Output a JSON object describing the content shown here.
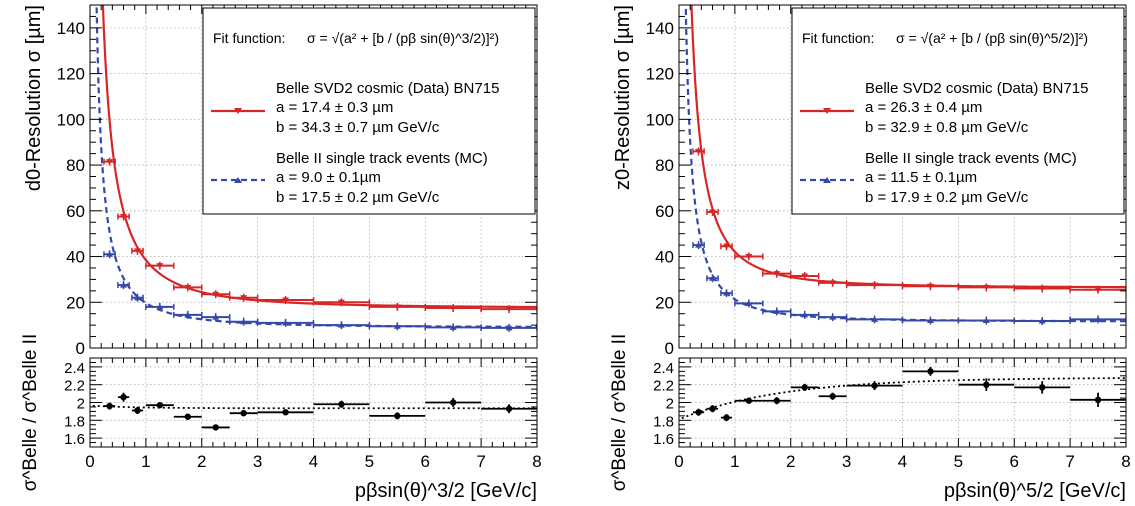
{
  "chart_data": [
    {
      "type": "scatter",
      "xlabel": "pβsin(θ)^3/2 [GeV/c]",
      "ylabel_top": "d0-Resolution σ [µm]",
      "ylabel_bottom": "σ^Belle / σ^Belle II",
      "xlim": [
        0,
        8
      ],
      "ylim_top": [
        0,
        150
      ],
      "ylim_bottom": [
        1.5,
        2.5
      ],
      "xticks": [
        "0",
        "1",
        "2",
        "3",
        "4",
        "5",
        "6",
        "7",
        "8"
      ],
      "yticks_top": [
        "0",
        "20",
        "40",
        "60",
        "80",
        "100",
        "120",
        "140"
      ],
      "yticks_bottom": [
        "1.6",
        "1.8",
        "2",
        "2.2",
        "2.4"
      ],
      "grid": true,
      "fit_function_label": "Fit function:",
      "fit_function_formula": "σ = √(a² + [b / (pβ sin(θ)^3/2)]²)",
      "legend": {
        "data_label": "Belle SVD2 cosmic (Data) BN715",
        "data_a": "a =  17.4 ± 0.3 µm",
        "data_b": "b =  34.3 ± 0.7 µm GeV/c",
        "mc_label": "Belle II single track events (MC)",
        "mc_a": "a =   9.0 ± 0.1µm",
        "mc_b": "b =  17.5 ± 0.2 µm GeV/c"
      },
      "fit_params": {
        "data": {
          "a": 17.4,
          "b": 34.3
        },
        "mc": {
          "a": 9.0,
          "b": 17.5
        }
      },
      "colors": {
        "data": "#d62728",
        "mc": "#3548a8",
        "ratio": "#000000"
      },
      "series": [
        {
          "name": "Belle SVD2 cosmic (Data) BN715",
          "points": [
            {
              "x": 0.35,
              "y": 81.5,
              "xerr": 0.1
            },
            {
              "x": 0.6,
              "y": 57.5,
              "xerr": 0.1
            },
            {
              "x": 0.85,
              "y": 42.5,
              "xerr": 0.1
            },
            {
              "x": 1.25,
              "y": 36,
              "xerr": 0.25
            },
            {
              "x": 1.75,
              "y": 26.5,
              "xerr": 0.25
            },
            {
              "x": 2.25,
              "y": 23.5,
              "xerr": 0.25
            },
            {
              "x": 2.75,
              "y": 22,
              "xerr": 0.25
            },
            {
              "x": 3.5,
              "y": 21,
              "xerr": 0.5
            },
            {
              "x": 4.5,
              "y": 20,
              "xerr": 0.5
            },
            {
              "x": 5.5,
              "y": 18,
              "xerr": 0.5
            },
            {
              "x": 6.5,
              "y": 17.5,
              "xerr": 0.5
            },
            {
              "x": 7.5,
              "y": 17,
              "xerr": 0.5
            }
          ]
        },
        {
          "name": "Belle II single track events (MC)",
          "points": [
            {
              "x": 0.35,
              "y": 41,
              "xerr": 0.1
            },
            {
              "x": 0.6,
              "y": 27.5,
              "xerr": 0.1
            },
            {
              "x": 0.85,
              "y": 22,
              "xerr": 0.1
            },
            {
              "x": 1.25,
              "y": 18,
              "xerr": 0.25
            },
            {
              "x": 1.75,
              "y": 14.5,
              "xerr": 0.25
            },
            {
              "x": 2.25,
              "y": 13.5,
              "xerr": 0.25
            },
            {
              "x": 2.75,
              "y": 11.5,
              "xerr": 0.25
            },
            {
              "x": 3.5,
              "y": 11,
              "xerr": 0.5
            },
            {
              "x": 4.5,
              "y": 10,
              "xerr": 0.5
            },
            {
              "x": 5.5,
              "y": 9.5,
              "xerr": 0.5
            },
            {
              "x": 6.5,
              "y": 9,
              "xerr": 0.5
            },
            {
              "x": 7.5,
              "y": 8.8,
              "xerr": 0.5
            }
          ]
        }
      ],
      "ratio": {
        "points": [
          {
            "x": 0.35,
            "y": 1.96,
            "xerr": 0.1,
            "yerr": 0.04
          },
          {
            "x": 0.6,
            "y": 2.06,
            "xerr": 0.1,
            "yerr": 0.05
          },
          {
            "x": 0.85,
            "y": 1.91,
            "xerr": 0.1,
            "yerr": 0.04
          },
          {
            "x": 1.25,
            "y": 1.97,
            "xerr": 0.25,
            "yerr": 0.03
          },
          {
            "x": 1.75,
            "y": 1.84,
            "xerr": 0.25,
            "yerr": 0.03
          },
          {
            "x": 2.25,
            "y": 1.72,
            "xerr": 0.25,
            "yerr": 0.03
          },
          {
            "x": 2.75,
            "y": 1.88,
            "xerr": 0.25,
            "yerr": 0.03
          },
          {
            "x": 3.5,
            "y": 1.89,
            "xerr": 0.5,
            "yerr": 0.03
          },
          {
            "x": 4.5,
            "y": 1.98,
            "xerr": 0.5,
            "yerr": 0.04
          },
          {
            "x": 5.5,
            "y": 1.85,
            "xerr": 0.5,
            "yerr": 0.04
          },
          {
            "x": 6.5,
            "y": 2.0,
            "xerr": 0.5,
            "yerr": 0.05
          },
          {
            "x": 7.5,
            "y": 1.93,
            "xerr": 0.5,
            "yerr": 0.05
          }
        ]
      }
    },
    {
      "type": "scatter",
      "xlabel": "pβsin(θ)^5/2 [GeV/c]",
      "ylabel_top": "z0-Resolution σ [µm]",
      "ylabel_bottom": "σ^Belle / σ^Belle II",
      "xlim": [
        0,
        8
      ],
      "ylim_top": [
        0,
        150
      ],
      "ylim_bottom": [
        1.5,
        2.5
      ],
      "xticks": [
        "0",
        "1",
        "2",
        "3",
        "4",
        "5",
        "6",
        "7",
        "8"
      ],
      "yticks_top": [
        "0",
        "20",
        "40",
        "60",
        "80",
        "100",
        "120",
        "140"
      ],
      "yticks_bottom": [
        "1.6",
        "1.8",
        "2",
        "2.2",
        "2.4"
      ],
      "grid": true,
      "fit_function_label": "Fit function:",
      "fit_function_formula": "σ = √(a² + [b / (pβ sin(θ)^5/2)]²)",
      "legend": {
        "data_label": "Belle SVD2 cosmic (Data) BN715",
        "data_a": "a =  26.3 ± 0.4 µm",
        "data_b": "b =  32.9 ± 0.8 µm GeV/c",
        "mc_label": "Belle II single track events (MC)",
        "mc_a": "a =  11.5 ± 0.1µm",
        "mc_b": "b =  17.9 ± 0.2 µm GeV/c"
      },
      "fit_params": {
        "data": {
          "a": 26.3,
          "b": 32.9
        },
        "mc": {
          "a": 11.5,
          "b": 17.9
        }
      },
      "colors": {
        "data": "#d62728",
        "mc": "#3548a8",
        "ratio": "#000000"
      },
      "series": [
        {
          "name": "Belle SVD2 cosmic (Data) BN715",
          "points": [
            {
              "x": 0.35,
              "y": 86,
              "xerr": 0.1
            },
            {
              "x": 0.6,
              "y": 59.5,
              "xerr": 0.1
            },
            {
              "x": 0.85,
              "y": 44.5,
              "xerr": 0.1
            },
            {
              "x": 1.25,
              "y": 40,
              "xerr": 0.25
            },
            {
              "x": 1.75,
              "y": 32.5,
              "xerr": 0.25
            },
            {
              "x": 2.25,
              "y": 31.5,
              "xerr": 0.25
            },
            {
              "x": 2.75,
              "y": 28.5,
              "xerr": 0.25
            },
            {
              "x": 3.5,
              "y": 27.5,
              "xerr": 0.5
            },
            {
              "x": 4.5,
              "y": 27,
              "xerr": 0.5
            },
            {
              "x": 5.5,
              "y": 26.5,
              "xerr": 0.5
            },
            {
              "x": 6.5,
              "y": 26,
              "xerr": 0.5
            },
            {
              "x": 7.5,
              "y": 25.5,
              "xerr": 0.5
            }
          ]
        },
        {
          "name": "Belle II single track events (MC)",
          "points": [
            {
              "x": 0.35,
              "y": 45,
              "xerr": 0.1
            },
            {
              "x": 0.6,
              "y": 30.5,
              "xerr": 0.1
            },
            {
              "x": 0.85,
              "y": 24,
              "xerr": 0.1
            },
            {
              "x": 1.25,
              "y": 19.5,
              "xerr": 0.25
            },
            {
              "x": 1.75,
              "y": 16,
              "xerr": 0.25
            },
            {
              "x": 2.25,
              "y": 14.5,
              "xerr": 0.25
            },
            {
              "x": 2.75,
              "y": 13.5,
              "xerr": 0.25
            },
            {
              "x": 3.5,
              "y": 12.5,
              "xerr": 0.5
            },
            {
              "x": 4.5,
              "y": 12,
              "xerr": 0.5
            },
            {
              "x": 5.5,
              "y": 12,
              "xerr": 0.5
            },
            {
              "x": 6.5,
              "y": 11.8,
              "xerr": 0.5
            },
            {
              "x": 7.5,
              "y": 12.5,
              "xerr": 0.5
            }
          ]
        }
      ],
      "ratio": {
        "points": [
          {
            "x": 0.35,
            "y": 1.89,
            "xerr": 0.1,
            "yerr": 0.04
          },
          {
            "x": 0.6,
            "y": 1.93,
            "xerr": 0.1,
            "yerr": 0.04
          },
          {
            "x": 0.85,
            "y": 1.83,
            "xerr": 0.1,
            "yerr": 0.04
          },
          {
            "x": 1.25,
            "y": 2.02,
            "xerr": 0.25,
            "yerr": 0.03
          },
          {
            "x": 1.75,
            "y": 2.02,
            "xerr": 0.25,
            "yerr": 0.04
          },
          {
            "x": 2.25,
            "y": 2.17,
            "xerr": 0.25,
            "yerr": 0.04
          },
          {
            "x": 2.75,
            "y": 2.07,
            "xerr": 0.25,
            "yerr": 0.04
          },
          {
            "x": 3.5,
            "y": 2.19,
            "xerr": 0.5,
            "yerr": 0.05
          },
          {
            "x": 4.5,
            "y": 2.35,
            "xerr": 0.5,
            "yerr": 0.05
          },
          {
            "x": 5.5,
            "y": 2.2,
            "xerr": 0.5,
            "yerr": 0.07
          },
          {
            "x": 6.5,
            "y": 2.17,
            "xerr": 0.5,
            "yerr": 0.07
          },
          {
            "x": 7.5,
            "y": 2.03,
            "xerr": 0.5,
            "yerr": 0.08
          }
        ]
      }
    }
  ]
}
